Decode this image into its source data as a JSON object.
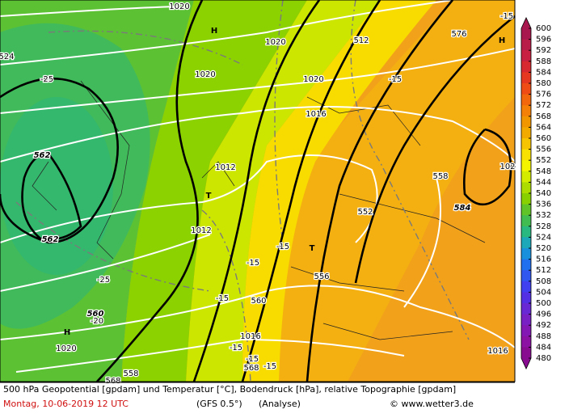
{
  "map": {
    "labels": [
      "1020",
      "H",
      "1020",
      "512",
      "576",
      "-15",
      "H",
      "524",
      "-25",
      "1020",
      "1020",
      "-15",
      "1016",
      "562",
      "1012",
      "558",
      "102",
      "T",
      "552",
      "584",
      "562",
      "1012",
      "-15",
      "T",
      "-15",
      "-25",
      "556",
      "-15",
      "560",
      "560",
      "-20",
      "H",
      "1016",
      "1020",
      "-15",
      "-15",
      "568",
      "-15",
      "1016",
      "558",
      "568"
    ]
  },
  "colorbar": {
    "labels": [
      600,
      596,
      592,
      588,
      584,
      580,
      576,
      572,
      568,
      564,
      560,
      556,
      552,
      548,
      544,
      540,
      536,
      532,
      528,
      524,
      520,
      516,
      512,
      508,
      504,
      500,
      496,
      492,
      488,
      484,
      480
    ],
    "colors": [
      "#a8184e",
      "#b81c48",
      "#c82040",
      "#d82830",
      "#e63820",
      "#ee4c14",
      "#f2660c",
      "#f48008",
      "#f29600",
      "#f2aa00",
      "#f6c400",
      "#f8e000",
      "#f4f400",
      "#d4ec00",
      "#acdc00",
      "#88d000",
      "#60c428",
      "#40bc50",
      "#28b880",
      "#1ca8b8",
      "#1890dc",
      "#2070f0",
      "#3058f0",
      "#4040f0",
      "#5430e4",
      "#6828d4",
      "#7820c4",
      "#8418b4",
      "#8c12a4",
      "#880c90"
    ]
  },
  "caption": {
    "description": "500 hPa Geopotential [gpdam] und Temperatur [°C], Bodendruck [hPa], relative Topographie [gpdam]",
    "date": "Montag, 10-06-2019  12 UTC",
    "model": "(GFS 0.5°)",
    "analysis": "(Analyse)",
    "credit": "© www.wetter3.de"
  }
}
